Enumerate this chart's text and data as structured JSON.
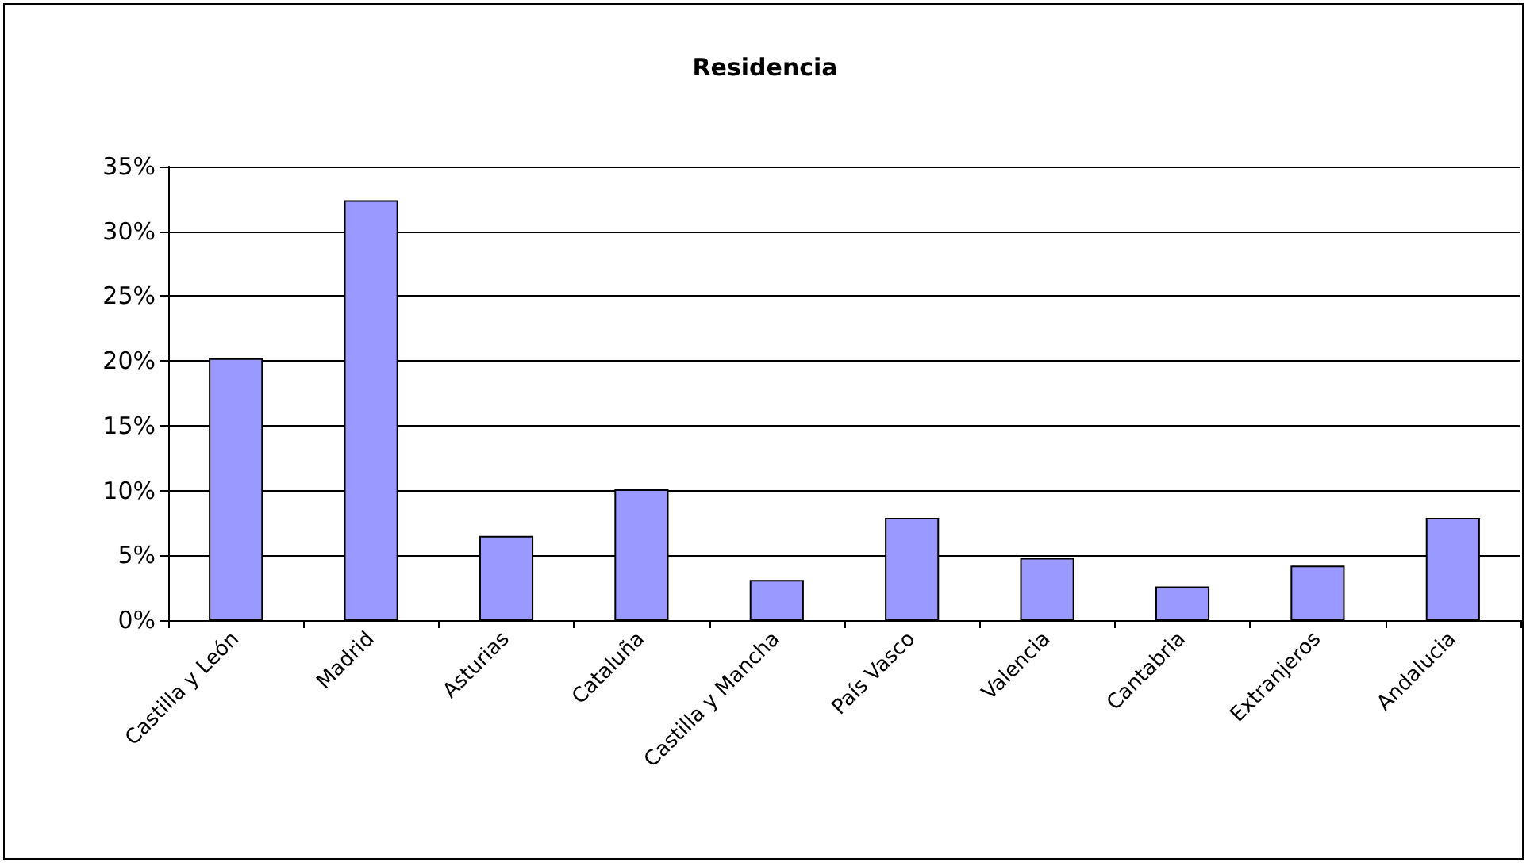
{
  "chart_data": {
    "type": "bar",
    "title": "Residencia",
    "categories": [
      "Castilla y León",
      "Madrid",
      "Asturias",
      "Cataluña",
      "Castilla y Mancha",
      "País Vasco",
      "Valencia",
      "Cantabria",
      "Extranjeros",
      "Andalucia"
    ],
    "values": [
      20.2,
      32.4,
      6.5,
      10.1,
      3.1,
      7.9,
      4.8,
      2.6,
      4.2,
      7.9
    ],
    "color": "#9999ff",
    "ylim": [
      0,
      35
    ],
    "yticks": [
      {
        "value": 0,
        "label": "0%"
      },
      {
        "value": 5,
        "label": "5%"
      },
      {
        "value": 10,
        "label": "10%"
      },
      {
        "value": 15,
        "label": "15%"
      },
      {
        "value": 20,
        "label": "20%"
      },
      {
        "value": 25,
        "label": "25%"
      },
      {
        "value": 30,
        "label": "30%"
      },
      {
        "value": 35,
        "label": "35%"
      }
    ],
    "grid": "y"
  }
}
